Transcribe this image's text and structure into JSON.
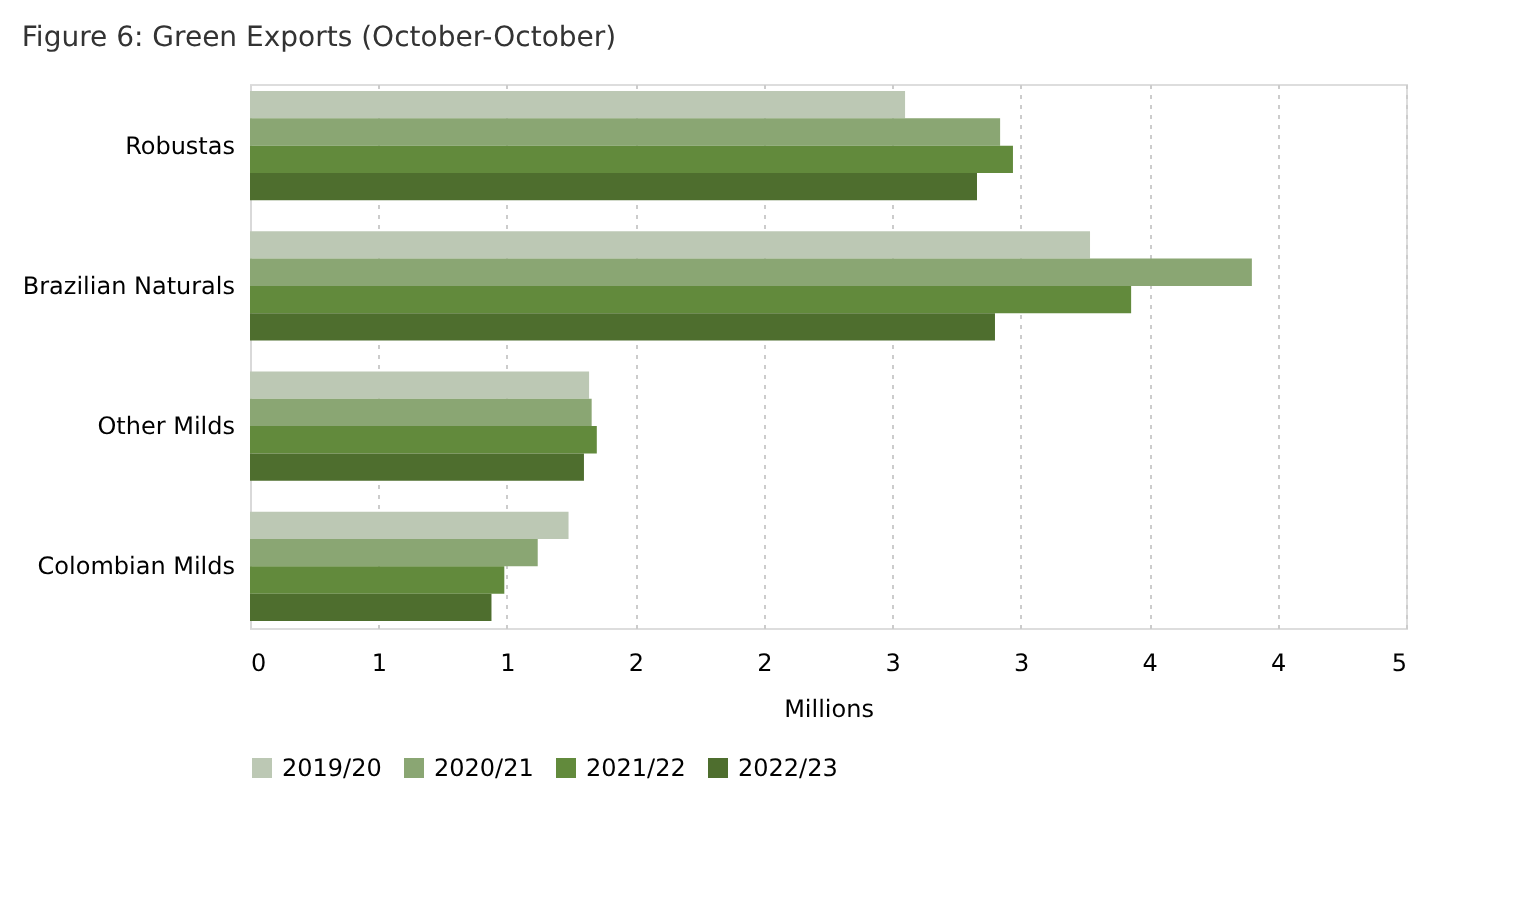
{
  "chart_data": {
    "type": "bar",
    "orientation": "horizontal",
    "title": "Figure 6: Green Exports (October-October)",
    "xlabel": "Millions",
    "categories": [
      "Robustas",
      "Brazilian Naturals",
      "Other Milds",
      "Colombian Milds"
    ],
    "series": [
      {
        "name": "2019/20",
        "color": "#bcc8b4",
        "values": [
          2.55,
          3.27,
          1.32,
          1.24
        ]
      },
      {
        "name": "2020/21",
        "color": "#8aa673",
        "values": [
          2.92,
          3.9,
          1.33,
          1.12
        ]
      },
      {
        "name": "2021/22",
        "color": "#628a3c",
        "values": [
          2.97,
          3.43,
          1.35,
          0.99
        ]
      },
      {
        "name": "2022/23",
        "color": "#4e6e2e",
        "values": [
          2.83,
          2.9,
          1.3,
          0.94
        ]
      }
    ],
    "xlim": [
      0,
      4.5
    ],
    "xticks": [
      0,
      {
        "value": 0.5,
        "label": "1"
      },
      1,
      {
        "value": 1.5,
        "label": "2"
      },
      2,
      {
        "value": 2.5,
        "label": "3"
      },
      3,
      {
        "value": 3.5,
        "label": "4"
      },
      4,
      {
        "value": 4.5,
        "label": "5"
      }
    ],
    "grid": "x",
    "legend": "bottom"
  }
}
